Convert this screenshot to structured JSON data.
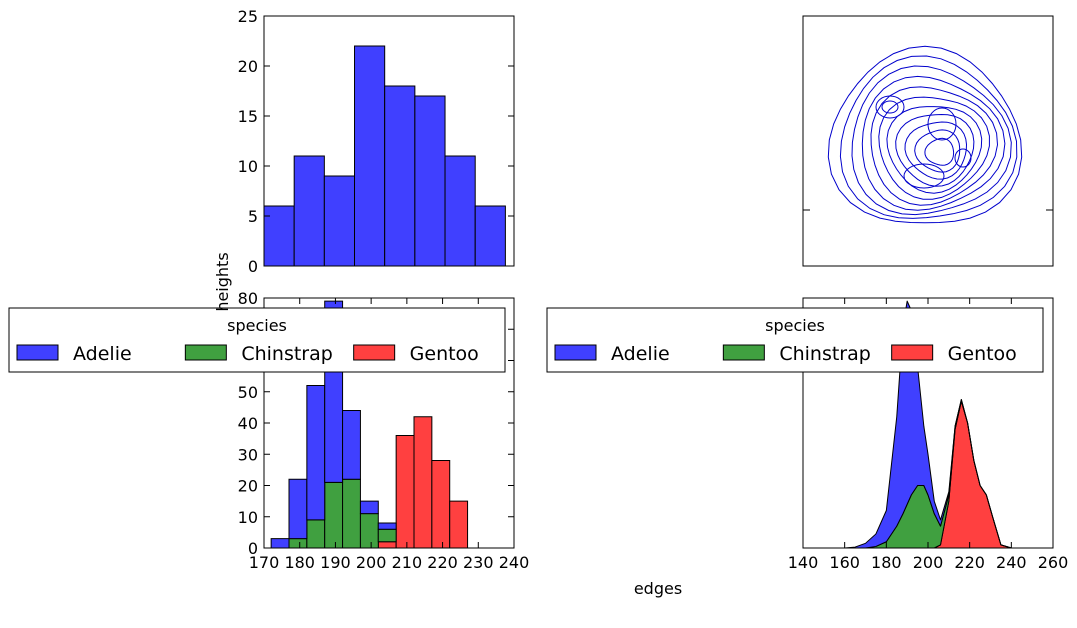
{
  "figure": {
    "xlabel": "edges",
    "ylabel": "heights"
  },
  "chart_data": [
    {
      "id": "top-left",
      "type": "bar",
      "bin_edges": [
        175,
        182,
        189,
        196,
        203,
        210,
        217,
        224,
        231
      ],
      "values": [
        6,
        11,
        9,
        22,
        18,
        17,
        11,
        6
      ],
      "color": "#4040ff",
      "xlim": [
        175,
        233
      ],
      "ylim": [
        0,
        25
      ],
      "yticks": [
        "0",
        "5",
        "10",
        "15",
        "20",
        "25"
      ]
    },
    {
      "id": "top-right",
      "type": "contour",
      "color": "#0000cc"
    },
    {
      "id": "bottom-left",
      "type": "bar",
      "stacked": true,
      "bin_edges": [
        172,
        177,
        182,
        187,
        192,
        197,
        202,
        207,
        212,
        217,
        222,
        227,
        232
      ],
      "series": [
        {
          "name": "Gentoo",
          "color": "#ff4040",
          "values": [
            0,
            0,
            0,
            0,
            0,
            0,
            2,
            36,
            42,
            28,
            15,
            0
          ]
        },
        {
          "name": "Chinstrap",
          "color": "#40a040",
          "values": [
            0,
            3,
            9,
            21,
            22,
            11,
            4,
            0,
            0,
            0,
            0,
            0
          ]
        },
        {
          "name": "Adelie",
          "color": "#4040ff",
          "values": [
            3,
            19,
            43,
            58,
            22,
            4,
            2,
            0,
            0,
            0,
            0,
            0
          ]
        }
      ],
      "xlim": [
        170,
        240
      ],
      "ylim": [
        0,
        80
      ],
      "xticks": [
        "170",
        "180",
        "190",
        "200",
        "210",
        "220",
        "230",
        "240"
      ],
      "yticks": [
        "0",
        "10",
        "20",
        "30",
        "40",
        "50",
        "60",
        "70",
        "80"
      ],
      "legend": {
        "title": "species",
        "entries": [
          "Adelie",
          "Chinstrap",
          "Gentoo"
        ],
        "colors": [
          "#4040ff",
          "#40a040",
          "#ff4040"
        ]
      }
    },
    {
      "id": "bottom-right",
      "type": "area",
      "stacked": true,
      "x": [
        160,
        165,
        170,
        175,
        180,
        185,
        188,
        190,
        192,
        195,
        198,
        200,
        203,
        206,
        210,
        213,
        216,
        219,
        222,
        225,
        228,
        231,
        235,
        240
      ],
      "series": [
        {
          "name": "Gentoo",
          "color": "#ff4040",
          "values": [
            0,
            0,
            0,
            0,
            0,
            0,
            0,
            0,
            0,
            0,
            0,
            0,
            0,
            1,
            15,
            38,
            47,
            40,
            28,
            20,
            17,
            10,
            1,
            0
          ]
        },
        {
          "name": "Chinstrap",
          "color": "#40a040",
          "values": [
            0,
            0,
            0,
            0.5,
            2,
            7,
            11,
            14,
            17,
            20,
            20,
            17,
            11,
            6,
            2,
            1,
            0.5,
            0,
            0,
            0,
            0,
            0,
            0,
            0
          ]
        },
        {
          "name": "Adelie",
          "color": "#4040ff",
          "values": [
            0,
            0.3,
            1.5,
            4,
            10,
            35,
            60,
            65,
            59,
            38,
            19,
            13,
            4,
            2,
            1,
            0,
            0,
            0,
            0,
            0,
            0,
            0,
            0,
            0
          ]
        }
      ],
      "xlim": [
        140,
        260
      ],
      "ylim": [
        0,
        80
      ],
      "xticks": [
        "140",
        "160",
        "180",
        "200",
        "220",
        "240",
        "260"
      ],
      "legend": {
        "title": "species",
        "entries": [
          "Adelie",
          "Chinstrap",
          "Gentoo"
        ],
        "colors": [
          "#4040ff",
          "#40a040",
          "#ff4040"
        ]
      }
    }
  ]
}
